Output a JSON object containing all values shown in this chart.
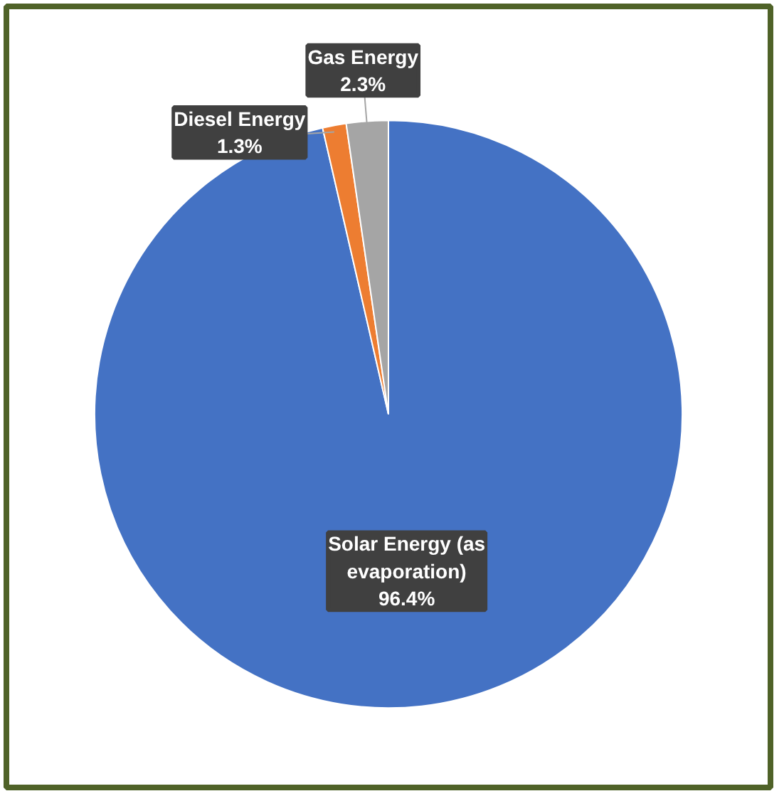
{
  "chart_data": {
    "type": "pie",
    "categories": [
      "Solar Energy (as evaporation)",
      "Diesel Energy",
      "Gas Energy"
    ],
    "values": [
      96.4,
      1.3,
      2.3
    ],
    "value_labels": [
      "96.4%",
      "1.3%",
      "2.3%"
    ],
    "colors": [
      "#4472c4",
      "#ed7d31",
      "#a5a5a5"
    ]
  }
}
